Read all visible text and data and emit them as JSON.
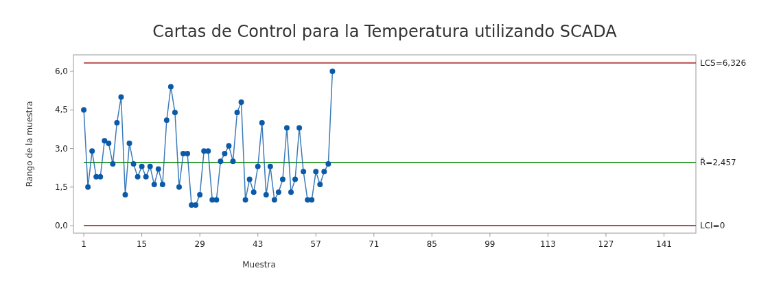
{
  "chart_data": {
    "type": "line",
    "title": "Cartas de Control para la Temperatura utilizando SCADA",
    "xlabel": "Muestra",
    "ylabel": "Rango de la muestra",
    "x": [
      1,
      2,
      3,
      4,
      5,
      6,
      7,
      8,
      9,
      10,
      11,
      12,
      13,
      14,
      15,
      16,
      17,
      18,
      19,
      20,
      21,
      22,
      23,
      24,
      25,
      26,
      27,
      28,
      29,
      30,
      31,
      32,
      33,
      34,
      35,
      36,
      37,
      38,
      39,
      40,
      41,
      42,
      43,
      44,
      45,
      46,
      47,
      48,
      49,
      50,
      51,
      52,
      53,
      54,
      55,
      56,
      57,
      58,
      59,
      60,
      61
    ],
    "series": [
      {
        "color": "#0b5aa8",
        "values": [
          4.5,
          1.5,
          2.9,
          1.9,
          1.9,
          3.3,
          3.2,
          2.4,
          4.0,
          5.0,
          1.2,
          3.2,
          2.4,
          1.9,
          2.3,
          1.9,
          2.3,
          1.6,
          2.2,
          1.6,
          4.1,
          5.4,
          4.4,
          1.5,
          2.8,
          2.8,
          0.8,
          0.8,
          1.2,
          2.9,
          2.9,
          1.0,
          1.0,
          2.5,
          2.8,
          3.1,
          2.5,
          4.4,
          4.8,
          1.0,
          1.8,
          1.3,
          2.3,
          4.0,
          1.2,
          2.3,
          1.0,
          1.3,
          1.8,
          3.8,
          1.3,
          1.8,
          3.8,
          2.1,
          1.0,
          1.0,
          2.1,
          1.6,
          2.1,
          2.4,
          6.0
        ]
      }
    ],
    "marker": "circle",
    "grid": false,
    "xlim": [
      -1.5,
      148.7
    ],
    "xticks": [
      1,
      15,
      29,
      43,
      57,
      71,
      85,
      99,
      113,
      127,
      141
    ],
    "ylim": [
      -0.29,
      6.64
    ],
    "yticks": [
      {
        "value": 0,
        "label": "0,0"
      },
      {
        "value": 1.5,
        "label": "1,5"
      },
      {
        "value": 3,
        "label": "3,0"
      },
      {
        "value": 4.5,
        "label": "4,5"
      },
      {
        "value": 6,
        "label": "6,0"
      }
    ],
    "ref_lines": [
      {
        "axis": "y",
        "value": 6.326,
        "label": "LCS=6,326",
        "color": "#b84a4a"
      },
      {
        "axis": "y",
        "value": 2.457,
        "label": "R̄=2,457",
        "color": "#3aa03a"
      },
      {
        "axis": "y",
        "value": 0,
        "label": "LCI=0",
        "color": "#b84a4a"
      }
    ]
  }
}
